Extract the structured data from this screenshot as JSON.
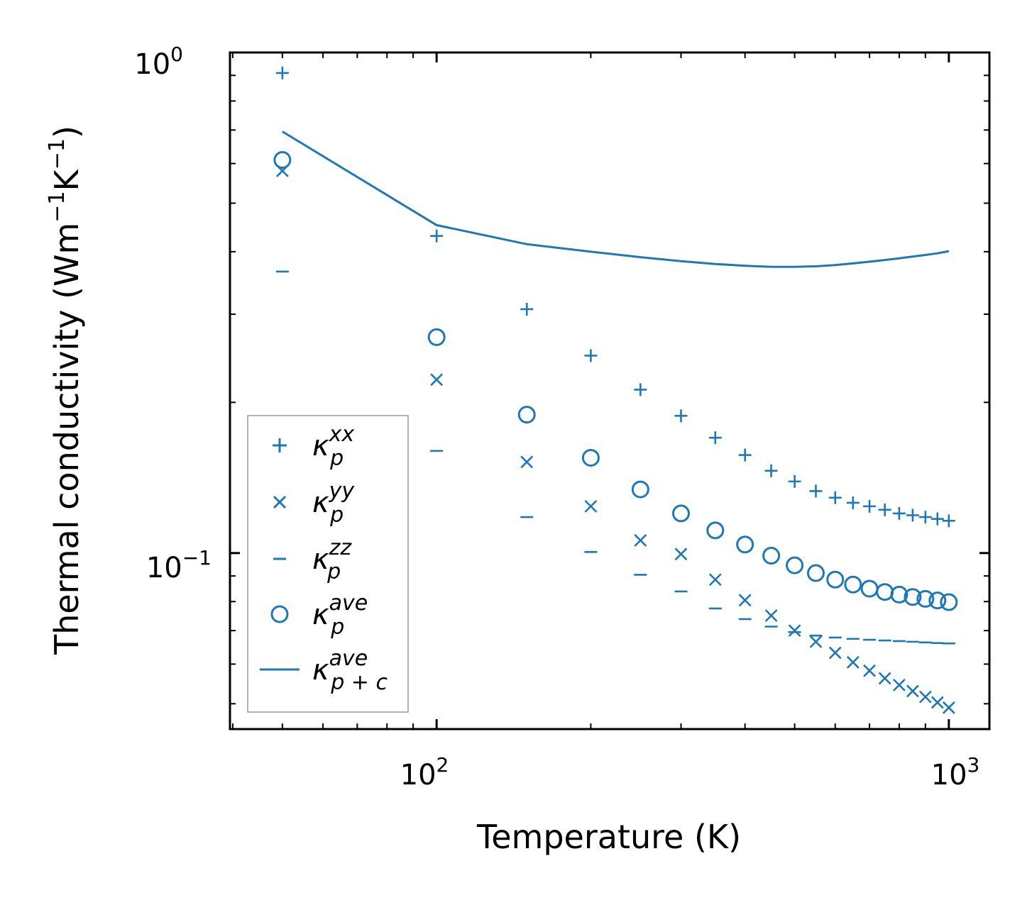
{
  "chart_data": {
    "type": "scatter",
    "scale": {
      "x": "log",
      "y": "log"
    },
    "xlim": [
      39.5,
      1200
    ],
    "ylim": [
      0.0445,
      1.0
    ],
    "xlabel": "Temperature (K)",
    "ylabel": "Thermal conductivity (Wm^-1K^-1)",
    "ylabel_parts": {
      "a": "Thermal conductivity (Wm",
      "b": "−1",
      "c": "K",
      "d": "−1",
      "e": ")"
    },
    "x_ticks": [
      {
        "value": 100,
        "base": "10",
        "exp": "2"
      },
      {
        "value": 1000,
        "base": "10",
        "exp": "3"
      }
    ],
    "y_ticks": [
      {
        "value": 1.0,
        "base": "10",
        "exp": "0"
      },
      {
        "value": 0.1,
        "base": "10",
        "exp": "−1"
      }
    ],
    "color": "#1f77b4",
    "x": [
      50,
      100,
      150,
      200,
      250,
      300,
      350,
      400,
      450,
      500,
      550,
      600,
      650,
      700,
      750,
      800,
      850,
      900,
      950,
      1000
    ],
    "series": [
      {
        "name": "kp_xx",
        "symbol": "κ",
        "sub": "p",
        "sup": "xx",
        "marker": "plus",
        "values": [
          0.91,
          0.43,
          0.307,
          0.248,
          0.212,
          0.188,
          0.17,
          0.157,
          0.146,
          0.139,
          0.133,
          0.129,
          0.126,
          0.124,
          0.122,
          0.12,
          0.119,
          0.118,
          0.117,
          0.116
        ]
      },
      {
        "name": "kp_yy",
        "symbol": "κ",
        "sub": "p",
        "sup": "yy",
        "marker": "x",
        "values": [
          0.58,
          0.222,
          0.152,
          0.124,
          0.106,
          0.0995,
          0.0885,
          0.0805,
          0.075,
          0.07,
          0.0665,
          0.0632,
          0.0605,
          0.0582,
          0.0562,
          0.0545,
          0.053,
          0.0516,
          0.0503,
          0.0491
        ]
      },
      {
        "name": "kp_zz",
        "symbol": "κ",
        "sub": "p",
        "sup": "zz",
        "marker": "hline",
        "values": [
          0.365,
          0.16,
          0.118,
          0.1005,
          0.0905,
          0.0838,
          0.0775,
          0.0738,
          0.0713,
          0.0695,
          0.0684,
          0.0678,
          0.0674,
          0.0671,
          0.0669,
          0.0667,
          0.0665,
          0.0663,
          0.0661,
          0.066
        ]
      },
      {
        "name": "kp_ave",
        "symbol": "κ",
        "sub": "p",
        "sup": "ave",
        "marker": "circle",
        "values": [
          0.61,
          0.27,
          0.189,
          0.155,
          0.134,
          0.12,
          0.111,
          0.104,
          0.0988,
          0.0945,
          0.0912,
          0.0885,
          0.0865,
          0.0849,
          0.0836,
          0.0826,
          0.0817,
          0.081,
          0.0804,
          0.0798
        ]
      },
      {
        "name": "kpc_ave",
        "symbol": "κ",
        "sub": "p + c",
        "sup": "ave",
        "marker": "line",
        "values": [
          0.695,
          0.452,
          0.414,
          0.4,
          0.39,
          0.383,
          0.378,
          0.375,
          0.373,
          0.373,
          0.374,
          0.376,
          0.379,
          0.382,
          0.385,
          0.388,
          0.391,
          0.394,
          0.397,
          0.401
        ]
      }
    ],
    "legend": {
      "position": "lower-left"
    },
    "grid": false
  }
}
